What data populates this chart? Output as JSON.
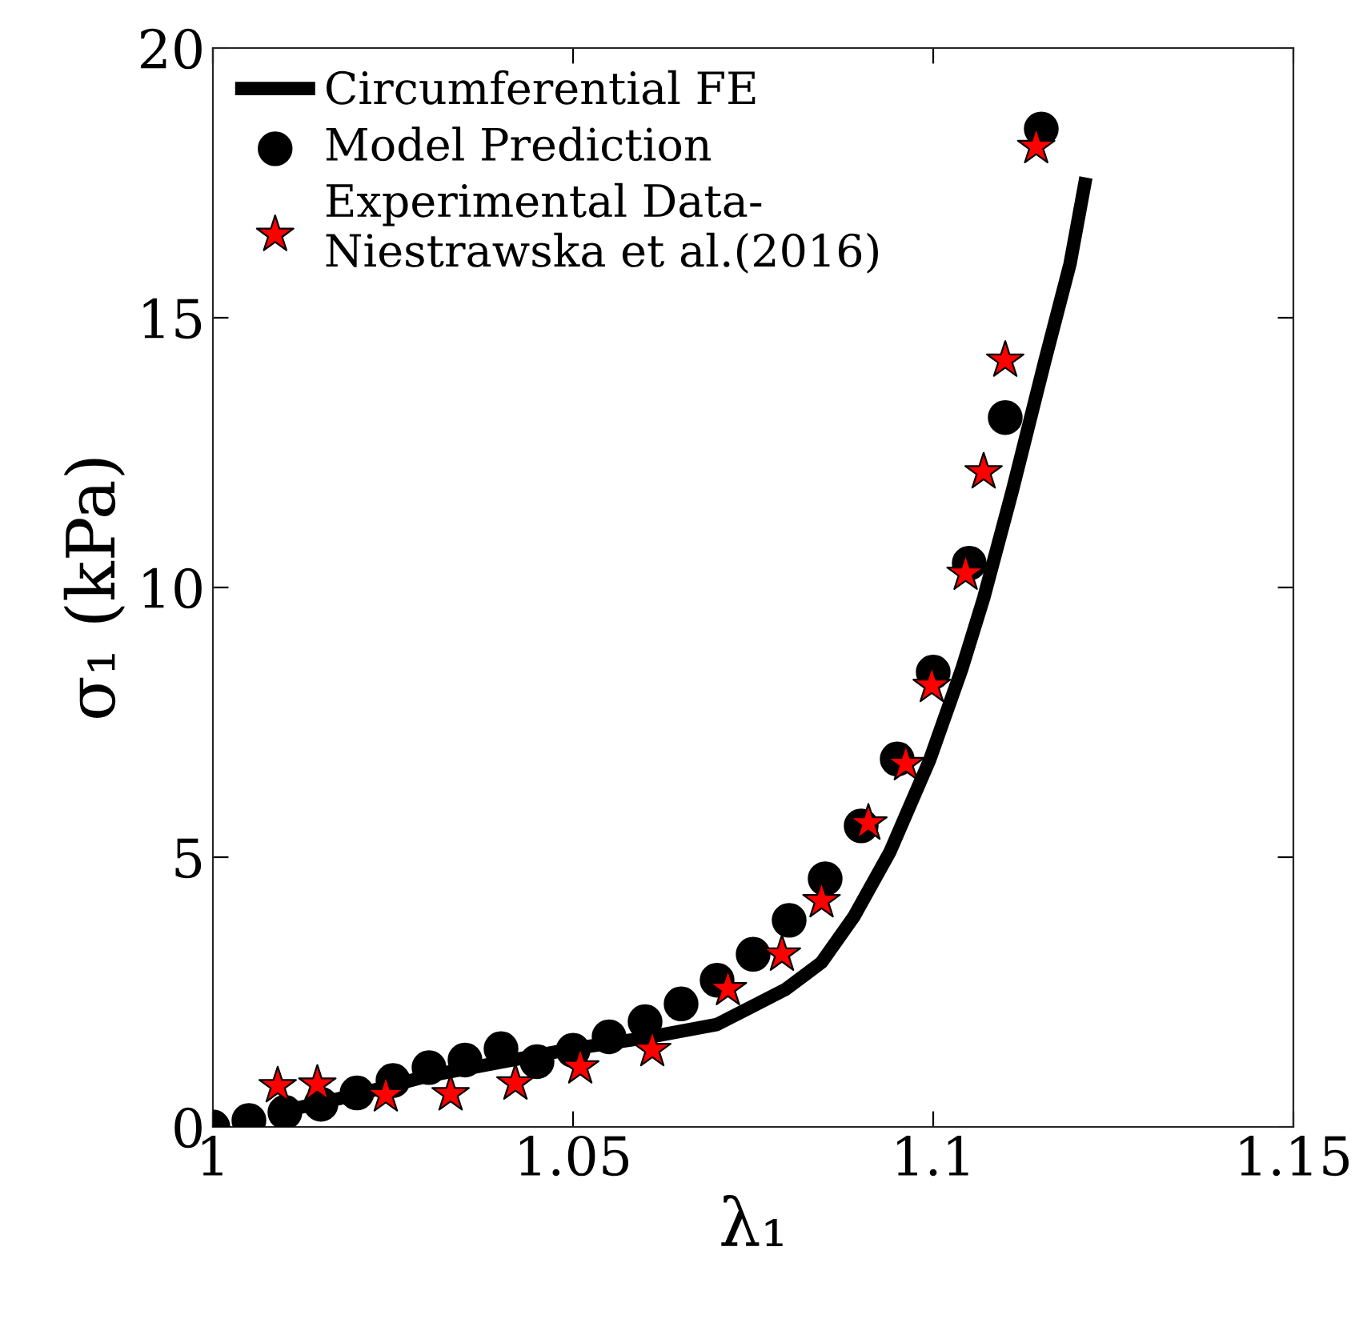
{
  "chart_data": {
    "type": "line",
    "xlabel": "λ₁",
    "ylabel": "σ₁ (kPa)",
    "xlim": [
      1,
      1.15
    ],
    "ylim": [
      0,
      20
    ],
    "xticks": [
      1,
      1.05,
      1.1,
      1.15
    ],
    "yticks": [
      0,
      5,
      10,
      15,
      20
    ],
    "grid": false,
    "legend": "top left",
    "series": [
      {
        "name": "Circumferential FE",
        "color": "#000000",
        "marker": "none",
        "line_style": "solid",
        "x": [
          1.01,
          1.02,
          1.03,
          1.04,
          1.05,
          1.06,
          1.07,
          1.0795,
          1.0845,
          1.089,
          1.094,
          1.0995,
          1.104,
          1.107,
          1.111,
          1.1155,
          1.119,
          1.1212
        ],
        "values": [
          0.3,
          0.6,
          0.95,
          1.2,
          1.45,
          1.65,
          1.9,
          2.55,
          3.05,
          3.9,
          5.1,
          6.8,
          8.5,
          9.8,
          11.8,
          14.2,
          16.0,
          17.6
        ]
      },
      {
        "name": "Model Prediction",
        "type": "scatter",
        "color": "#000000",
        "marker": "circle",
        "x": [
          1.0,
          1.005,
          1.01,
          1.015,
          1.02,
          1.025,
          1.03,
          1.035,
          1.04,
          1.045,
          1.05,
          1.055,
          1.06,
          1.065,
          1.07,
          1.075,
          1.08,
          1.085,
          1.09,
          1.095,
          1.1,
          1.105,
          1.11,
          1.115
        ],
        "values": [
          0,
          0.12,
          0.27,
          0.42,
          0.63,
          0.86,
          1.1,
          1.24,
          1.45,
          1.21,
          1.42,
          1.67,
          1.95,
          2.28,
          2.72,
          3.2,
          3.83,
          4.6,
          5.58,
          6.82,
          8.43,
          10.45,
          13.15,
          18.5
        ]
      },
      {
        "name": "Experimental Data-\nNiestrawska et al.(2016)",
        "type": "scatter",
        "color": "#ff0000",
        "marker": "star",
        "x": [
          1.009,
          1.0145,
          1.024,
          1.033,
          1.042,
          1.051,
          1.061,
          1.0715,
          1.079,
          1.0845,
          1.091,
          1.0962,
          1.0998,
          1.1045,
          1.107,
          1.11,
          1.1143
        ],
        "values": [
          0.76,
          0.79,
          0.59,
          0.61,
          0.81,
          1.11,
          1.43,
          2.56,
          3.2,
          4.19,
          5.63,
          6.73,
          8.18,
          10.26,
          12.14,
          14.21,
          18.17
        ]
      }
    ]
  }
}
